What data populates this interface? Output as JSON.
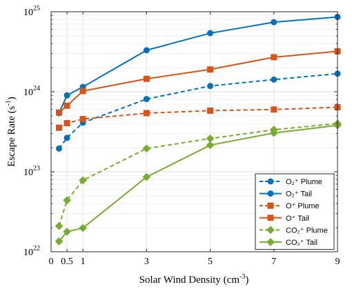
{
  "chart_data": {
    "type": "line",
    "xlabel": "Solar Wind Density (cm",
    "xlabel_sup": "-3",
    "xlabel_end": ")",
    "ylabel": "Escape Rate (s",
    "ylabel_sup": "-1",
    "ylabel_end": ")",
    "xlim": [
      0,
      9
    ],
    "ylim": [
      1e+22,
      1e+25
    ],
    "yscale": "log",
    "grid": true,
    "legend_position": "bottom-right",
    "x_ticks": [
      {
        "value": 0,
        "label": "0"
      },
      {
        "value": 0.5,
        "label": "0.5"
      },
      {
        "value": 1,
        "label": "1"
      },
      {
        "value": 3,
        "label": "3"
      },
      {
        "value": 5,
        "label": "5"
      },
      {
        "value": 7,
        "label": "7"
      },
      {
        "value": 9,
        "label": "9"
      }
    ],
    "y_ticks": [
      {
        "value": 1e+22,
        "base": "10",
        "exp": "22"
      },
      {
        "value": 1e+23,
        "base": "10",
        "exp": "23"
      },
      {
        "value": 1e+24,
        "base": "10",
        "exp": "24"
      },
      {
        "value": 1e+25,
        "base": "10",
        "exp": "25"
      }
    ],
    "x": [
      0.25,
      0.5,
      1,
      3,
      5,
      7,
      9
    ],
    "series": [
      {
        "name": "O₂⁺ Plume",
        "color": "#0072BD",
        "dash": true,
        "marker": "circle",
        "values": [
          1.95e+23,
          2.65e+23,
          4.1e+23,
          8.1e+23,
          1.18e+24,
          1.42e+24,
          1.68e+24
        ]
      },
      {
        "name": "O₂⁺ Tail",
        "color": "#0072BD",
        "dash": false,
        "marker": "circle",
        "values": [
          5.4e+23,
          9e+23,
          1.15e+24,
          3.3e+24,
          5.4e+24,
          7.4e+24,
          8.6e+24
        ]
      },
      {
        "name": "O⁺ Plume",
        "color": "#D95319",
        "dash": true,
        "marker": "square",
        "values": [
          3.55e+23,
          4.05e+23,
          4.55e+23,
          5.4e+23,
          5.8e+23,
          6e+23,
          6.4e+23
        ]
      },
      {
        "name": "O⁺ Tail",
        "color": "#D95319",
        "dash": false,
        "marker": "square",
        "values": [
          5.5e+23,
          6.7e+23,
          1.02e+24,
          1.45e+24,
          1.9e+24,
          2.7e+24,
          3.2e+24
        ]
      },
      {
        "name": "CO₂⁺ Plume",
        "color": "#77AC30",
        "dash": true,
        "marker": "diamond",
        "values": [
          2.1e+22,
          4.4e+22,
          7.8e+22,
          1.95e+23,
          2.6e+23,
          3.35e+23,
          4e+23
        ]
      },
      {
        "name": "CO₂⁺ Tail",
        "color": "#77AC30",
        "dash": false,
        "marker": "diamond",
        "values": [
          1.35e+22,
          1.78e+22,
          1.98e+22,
          8.6e+22,
          2.15e+23,
          3.05e+23,
          3.8e+23
        ]
      }
    ]
  }
}
